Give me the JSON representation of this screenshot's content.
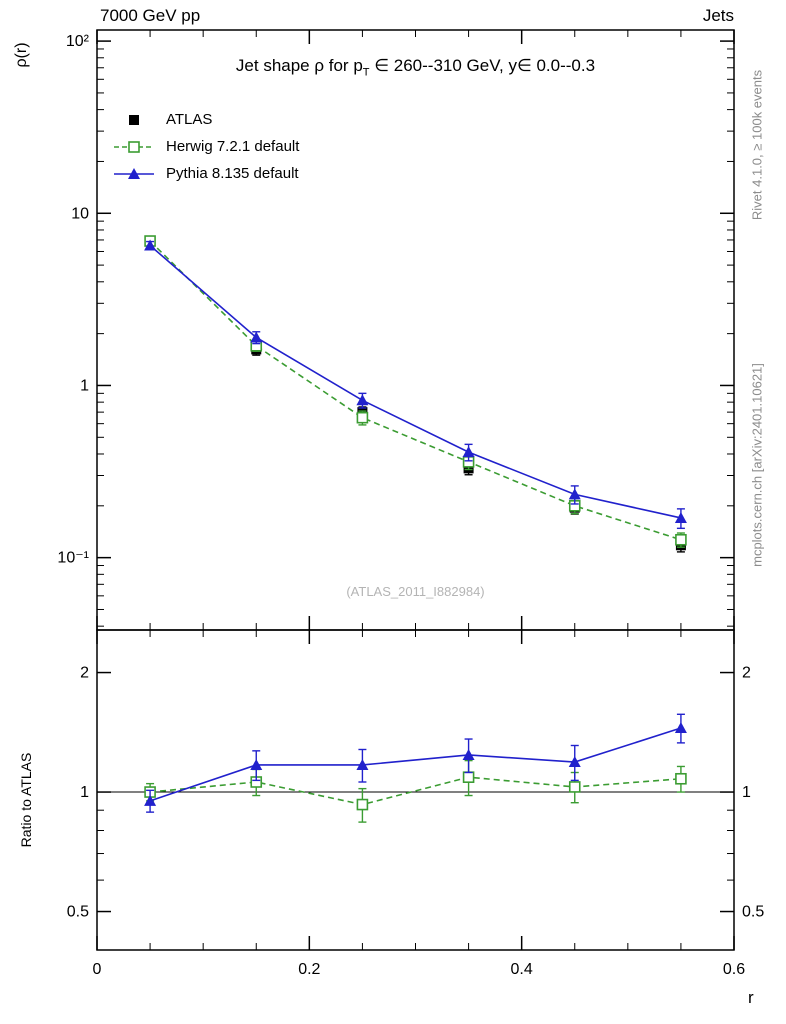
{
  "header": {
    "left": "7000 GeV pp",
    "right": "Jets"
  },
  "title": {
    "pre": "Jet shape ρ for p",
    "sub": "T",
    "post": " ∈ 260--310 GeV, y∈ 0.0--0.3"
  },
  "watermark": "(ATLAS_2011_I882984)",
  "side_notes": {
    "top": "Rivet 4.1.0, ≥ 100k events",
    "bottom": "mcplots.cern.ch [arXiv:2401.10621]"
  },
  "axes": {
    "ylabel": "ρ(r)",
    "xlabel": "r",
    "ratio_label": "Ratio to ATLAS",
    "x_major_ticks": [
      {
        "v": 0,
        "label": "0"
      },
      {
        "v": 0.2,
        "label": "0.2"
      },
      {
        "v": 0.4,
        "label": "0.4"
      },
      {
        "v": 0.6,
        "label": "0.6"
      }
    ],
    "x_minor_step": 0.05,
    "y_main_ticks": [
      {
        "v": 100,
        "label": "10²"
      },
      {
        "v": 10,
        "label": "10"
      },
      {
        "v": 1,
        "label": "1"
      },
      {
        "v": 0.1,
        "label": "10⁻¹"
      }
    ],
    "y_ratio_ticks": [
      {
        "v": 2,
        "label": "2"
      },
      {
        "v": 1,
        "label": "1"
      },
      {
        "v": 0.5,
        "label": "0.5"
      }
    ],
    "y_ratio_minor": [
      0.6,
      0.7,
      0.8,
      0.9
    ]
  },
  "chart_data": {
    "type": "line",
    "title": "Jet shape ρ for p_T ∈ 260--310 GeV, y∈ 0.0--0.3",
    "xlabel": "r",
    "ylabel": "ρ(r)",
    "ratio_ylabel": "Ratio to ATLAS",
    "x": [
      0.05,
      0.15,
      0.25,
      0.35,
      0.45,
      0.55
    ],
    "xlim": [
      0,
      0.6
    ],
    "yscale_main": "log",
    "ylim_main": [
      0.038,
      116
    ],
    "yscale_ratio": "log",
    "ylim_ratio": [
      0.4,
      2.56
    ],
    "reference_line": 1,
    "series": [
      {
        "name": "ATLAS",
        "color": "#000000",
        "marker": "square",
        "fill": "filled",
        "line": "none",
        "values": [
          6.9,
          1.62,
          0.7,
          0.33,
          0.195,
          0.118
        ],
        "errors": [
          0.35,
          0.12,
          0.05,
          0.027,
          0.016,
          0.01
        ]
      },
      {
        "name": "Herwig 7.2.1 default",
        "color": "#3b9c32",
        "marker": "square",
        "fill": "open",
        "line": "dashed",
        "values": [
          6.9,
          1.7,
          0.65,
          0.36,
          0.2,
          0.127
        ],
        "errors": [
          0.3,
          0.12,
          0.06,
          0.035,
          0.02,
          0.012
        ]
      },
      {
        "name": "Pythia 8.135 default",
        "color": "#2121cc",
        "marker": "triangle",
        "fill": "filled",
        "line": "solid",
        "values": [
          6.5,
          1.9,
          0.82,
          0.41,
          0.233,
          0.17
        ],
        "errors": [
          0.35,
          0.15,
          0.08,
          0.045,
          0.028,
          0.022
        ]
      }
    ],
    "ratio_series": [
      {
        "name": "Herwig 7.2.1 default",
        "color": "#3b9c32",
        "marker": "square",
        "fill": "open",
        "line": "dashed",
        "values": [
          1.0,
          1.06,
          0.93,
          1.09,
          1.03,
          1.08
        ],
        "errors": [
          0.05,
          0.08,
          0.09,
          0.11,
          0.09,
          0.08
        ]
      },
      {
        "name": "Pythia 8.135 default",
        "color": "#2121cc",
        "marker": "triangle",
        "fill": "filled",
        "line": "solid",
        "values": [
          0.95,
          1.17,
          1.17,
          1.24,
          1.19,
          1.45
        ],
        "errors": [
          0.06,
          0.1,
          0.11,
          0.12,
          0.12,
          0.12
        ]
      }
    ]
  }
}
